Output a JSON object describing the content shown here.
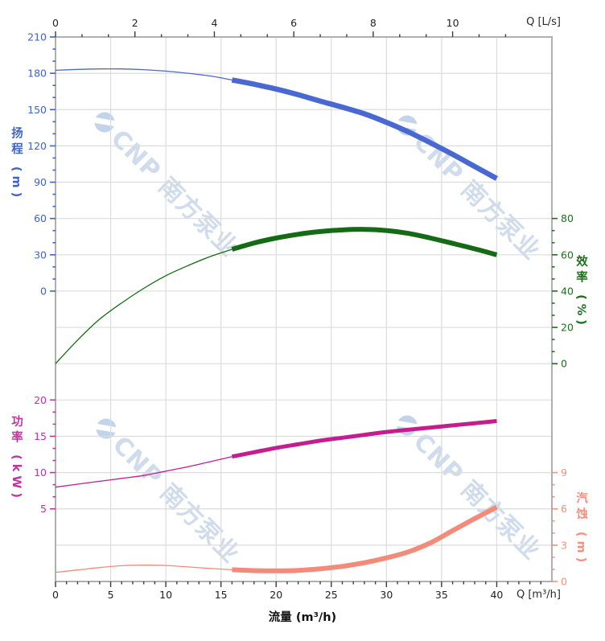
{
  "watermark": {
    "text": "CNP 南方泵业",
    "color": "#ccd9ea",
    "logo_color": "#bdcfe7",
    "logo": "cnp-swoosh-icon"
  },
  "chart_data": {
    "type": "line",
    "title": "",
    "grid": true,
    "plot_border_color": "#b0b0b0",
    "grid_color": "#dcdcdc",
    "x_axis_bottom": {
      "title": "流量 (m³/h)",
      "unit_label": "Q [m³/h]",
      "ticks": [
        0,
        5,
        10,
        15,
        20,
        25,
        30,
        35,
        40
      ],
      "minors_between": 4,
      "range": [
        0,
        45
      ],
      "tick_color": "#3a3a3a",
      "label_color": "#222222"
    },
    "x_axis_top": {
      "unit_label": "Q [L/s]",
      "ticks": [
        0,
        2,
        4,
        6,
        8,
        10
      ],
      "minors_between": 2,
      "to_m3h": 3.6,
      "range_ls": [
        0,
        12.5
      ],
      "tick_color": "#3a3a3a",
      "label_color": "#222222"
    },
    "y_axes": [
      {
        "id": "head",
        "side": "left",
        "title": "扬程 (m)",
        "label_color": "#3f63c9",
        "curve_color": "#4a68d2",
        "ticks": [
          210,
          180,
          150,
          120,
          90,
          60,
          30,
          0
        ],
        "v0": 210,
        "row0": 0,
        "per_row": 30,
        "minors_between": 2
      },
      {
        "id": "efficiency",
        "side": "right",
        "title": "效率 (%)",
        "label_color": "#1c701c",
        "curve_color": "#156b15",
        "ticks": [
          80,
          60,
          40,
          20,
          0
        ],
        "v0": 80,
        "row0": 5,
        "per_row": 20,
        "minors_between": 2
      },
      {
        "id": "power",
        "side": "left",
        "title": "功率 (kW)",
        "label_color": "#c133a0",
        "curve_color": "#c41d90",
        "ticks": [
          20,
          15,
          10,
          5
        ],
        "v0": 20,
        "row0": 10,
        "per_row": 5,
        "minors_between": 2
      },
      {
        "id": "npsh",
        "side": "right",
        "title": "汽蚀 (m)",
        "label_color": "#f4907f",
        "curve_color": "#f48a7a",
        "ticks": [
          9,
          6,
          3,
          0
        ],
        "v0": 9,
        "row0": 12,
        "per_row": 3,
        "minors_between": 2
      }
    ],
    "series": [
      {
        "name": "head-curve",
        "axis": "head",
        "bold_from": 16,
        "thin_width": 1.3,
        "bold_width": 6.5,
        "x": [
          0,
          2,
          4,
          6,
          8,
          10,
          12,
          14,
          16,
          18,
          20,
          22,
          24,
          26,
          28,
          30,
          32,
          34,
          36,
          38,
          40
        ],
        "values": [
          182.5,
          183.2,
          183.6,
          183.6,
          183.0,
          181.8,
          180.0,
          177.8,
          174.5,
          171.0,
          167.0,
          162.3,
          157.0,
          152.0,
          146.5,
          139.5,
          131.5,
          122.5,
          113.0,
          103.0,
          93.0
        ]
      },
      {
        "name": "efficiency-curve",
        "axis": "efficiency",
        "bold_from": 16,
        "thin_width": 1.3,
        "bold_width": 6.0,
        "x": [
          0,
          2,
          4,
          6,
          8,
          10,
          12,
          14,
          16,
          18,
          20,
          22,
          24,
          26,
          28,
          30,
          32,
          34,
          36,
          38,
          40
        ],
        "values": [
          0,
          13.0,
          24.5,
          33.5,
          41.5,
          48.5,
          54.0,
          59.0,
          63.0,
          66.5,
          69.2,
          71.3,
          72.8,
          73.7,
          74.0,
          73.4,
          71.8,
          69.2,
          66.3,
          63.3,
          60.0
        ]
      },
      {
        "name": "power-curve",
        "axis": "power",
        "bold_from": 16,
        "thin_width": 1.3,
        "bold_width": 5.0,
        "x": [
          0,
          2,
          4,
          6,
          8,
          10,
          12,
          14,
          16,
          18,
          20,
          22,
          24,
          26,
          28,
          30,
          32,
          34,
          36,
          38,
          40
        ],
        "values": [
          8.0,
          8.4,
          8.8,
          9.2,
          9.6,
          10.2,
          10.8,
          11.5,
          12.2,
          12.8,
          13.4,
          13.9,
          14.4,
          14.8,
          15.2,
          15.6,
          15.9,
          16.2,
          16.5,
          16.8,
          17.1
        ]
      },
      {
        "name": "npsh-curve",
        "axis": "npsh",
        "bold_from": 16,
        "thin_width": 1.3,
        "bold_width": 6.0,
        "x": [
          0,
          2,
          4,
          6,
          8,
          10,
          12,
          14,
          16,
          18,
          20,
          22,
          24,
          26,
          28,
          30,
          32,
          34,
          36,
          38,
          40
        ],
        "values": [
          0.75,
          0.95,
          1.15,
          1.3,
          1.35,
          1.32,
          1.2,
          1.08,
          0.97,
          0.9,
          0.88,
          0.92,
          1.05,
          1.25,
          1.55,
          1.95,
          2.45,
          3.2,
          4.2,
          5.2,
          6.15
        ]
      }
    ]
  }
}
